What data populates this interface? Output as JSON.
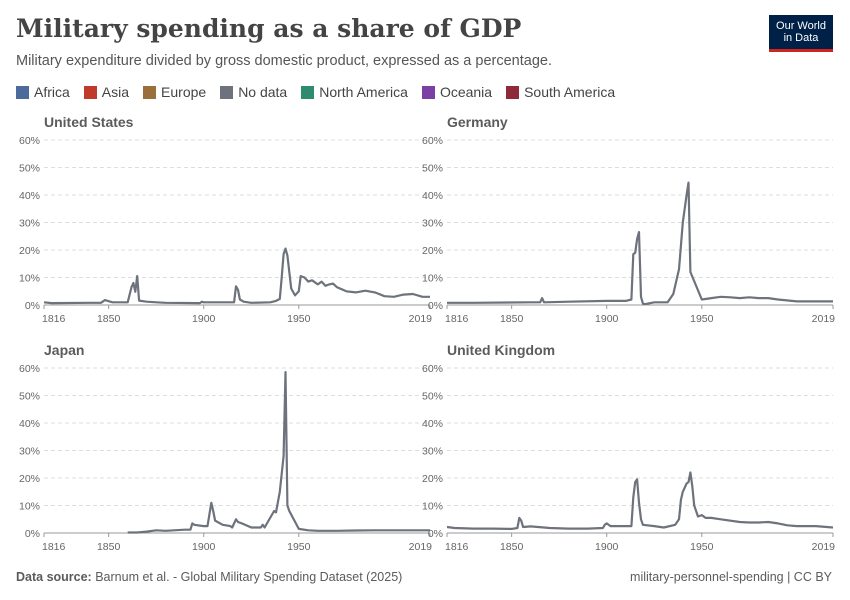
{
  "header": {
    "title": "Military spending as a share of GDP",
    "subtitle": "Military expenditure divided by gross domestic product, expressed as a percentage.",
    "logo_line1": "Our World",
    "logo_line2": "in Data"
  },
  "legend": [
    {
      "label": "Africa",
      "color": "#4c6a9c"
    },
    {
      "label": "Asia",
      "color": "#c0392b"
    },
    {
      "label": "Europe",
      "color": "#9a6f3c"
    },
    {
      "label": "No data",
      "color": "#6d727c"
    },
    {
      "label": "North America",
      "color": "#2e8b6f"
    },
    {
      "label": "Oceania",
      "color": "#7b3fa6"
    },
    {
      "label": "South America",
      "color": "#8f2a3a"
    }
  ],
  "footer": {
    "source_label": "Data source:",
    "source_text": "Barnum et al. - Global Military Spending Dataset (2025)",
    "right_text": "military-personnel-spending | CC BY"
  },
  "chart_data": [
    {
      "type": "line",
      "title": "United States",
      "ylim": [
        0,
        60
      ],
      "xlim": [
        1816,
        2019
      ],
      "yticks": [
        "0%",
        "10%",
        "20%",
        "30%",
        "40%",
        "50%",
        "60%"
      ],
      "xticks": [
        "1816",
        "1850",
        "1900",
        "1950",
        "2019"
      ],
      "series": [
        {
          "color": "#6d727c",
          "points": [
            [
              1816,
              1.0
            ],
            [
              1820,
              0.7
            ],
            [
              1840,
              0.8
            ],
            [
              1846,
              0.8
            ],
            [
              1848,
              1.8
            ],
            [
              1852,
              1.0
            ],
            [
              1860,
              1.0
            ],
            [
              1862,
              6.5
            ],
            [
              1863,
              8.0
            ],
            [
              1864,
              4.8
            ],
            [
              1865,
              10.5
            ],
            [
              1866,
              1.6
            ],
            [
              1870,
              1.2
            ],
            [
              1875,
              1.0
            ],
            [
              1880,
              0.8
            ],
            [
              1898,
              0.7
            ],
            [
              1899,
              1.2
            ],
            [
              1900,
              1.0
            ],
            [
              1916,
              1.0
            ],
            [
              1917,
              6.8
            ],
            [
              1918,
              5.5
            ],
            [
              1919,
              2.0
            ],
            [
              1921,
              1.2
            ],
            [
              1925,
              0.8
            ],
            [
              1935,
              1.0
            ],
            [
              1938,
              1.5
            ],
            [
              1940,
              2.2
            ],
            [
              1941,
              10.0
            ],
            [
              1942,
              18.5
            ],
            [
              1943,
              20.5
            ],
            [
              1944,
              18.0
            ],
            [
              1945,
              12.0
            ],
            [
              1946,
              6.0
            ],
            [
              1948,
              3.5
            ],
            [
              1950,
              5.0
            ],
            [
              1951,
              10.5
            ],
            [
              1953,
              10.0
            ],
            [
              1955,
              8.5
            ],
            [
              1957,
              9.0
            ],
            [
              1960,
              7.5
            ],
            [
              1962,
              8.5
            ],
            [
              1964,
              7.0
            ],
            [
              1966,
              7.5
            ],
            [
              1968,
              7.8
            ],
            [
              1970,
              6.5
            ],
            [
              1975,
              5.0
            ],
            [
              1980,
              4.6
            ],
            [
              1985,
              5.2
            ],
            [
              1990,
              4.6
            ],
            [
              1995,
              3.2
            ],
            [
              2000,
              3.0
            ],
            [
              2005,
              3.8
            ],
            [
              2010,
              4.0
            ],
            [
              2015,
              3.0
            ],
            [
              2019,
              3.0
            ]
          ]
        }
      ]
    },
    {
      "type": "line",
      "title": "Germany",
      "ylim": [
        0,
        60
      ],
      "xlim": [
        1816,
        2019
      ],
      "yticks": [
        "0%",
        "10%",
        "20%",
        "30%",
        "40%",
        "50%",
        "60%"
      ],
      "xticks": [
        "1816",
        "1850",
        "1900",
        "1950",
        "2019"
      ],
      "series": [
        {
          "color": "#6d727c",
          "points": [
            [
              1816,
              0.8
            ],
            [
              1830,
              0.8
            ],
            [
              1860,
              1.0
            ],
            [
              1865,
              1.0
            ],
            [
              1866,
              2.5
            ],
            [
              1867,
              1.0
            ],
            [
              1880,
              1.2
            ],
            [
              1900,
              1.5
            ],
            [
              1910,
              1.5
            ],
            [
              1913,
              2.0
            ],
            [
              1914,
              18.5
            ],
            [
              1915,
              19.0
            ],
            [
              1916,
              24.0
            ],
            [
              1917,
              26.5
            ],
            [
              1918,
              3.0
            ],
            [
              1919,
              0.5
            ],
            [
              1920,
              0.3
            ],
            [
              1925,
              1.0
            ],
            [
              1932,
              1.0
            ],
            [
              1935,
              4.0
            ],
            [
              1938,
              13.0
            ],
            [
              1940,
              30.0
            ],
            [
              1942,
              40.0
            ],
            [
              1943,
              44.5
            ],
            [
              1944,
              12.0
            ],
            [
              1950,
              2.0
            ],
            [
              1955,
              2.5
            ],
            [
              1960,
              3.0
            ],
            [
              1965,
              2.8
            ],
            [
              1970,
              2.5
            ],
            [
              1975,
              2.8
            ],
            [
              1980,
              2.5
            ],
            [
              1985,
              2.5
            ],
            [
              1990,
              2.0
            ],
            [
              2000,
              1.3
            ],
            [
              2010,
              1.3
            ],
            [
              2019,
              1.3
            ]
          ]
        }
      ]
    },
    {
      "type": "line",
      "title": "Japan",
      "ylim": [
        0,
        60
      ],
      "xlim": [
        1816,
        2019
      ],
      "yticks": [
        "0%",
        "10%",
        "20%",
        "30%",
        "40%",
        "50%",
        "60%"
      ],
      "xticks": [
        "1816",
        "1850",
        "1900",
        "1950",
        "2019"
      ],
      "series": [
        {
          "color": "#6d727c",
          "points": [
            [
              1860,
              0.2
            ],
            [
              1865,
              0.2
            ],
            [
              1870,
              0.5
            ],
            [
              1875,
              1.0
            ],
            [
              1880,
              0.8
            ],
            [
              1890,
              1.2
            ],
            [
              1893,
              1.2
            ],
            [
              1894,
              3.5
            ],
            [
              1895,
              3.0
            ],
            [
              1900,
              2.5
            ],
            [
              1902,
              2.5
            ],
            [
              1904,
              11.0
            ],
            [
              1905,
              8.0
            ],
            [
              1906,
              4.5
            ],
            [
              1910,
              3.0
            ],
            [
              1914,
              2.5
            ],
            [
              1915,
              2.0
            ],
            [
              1917,
              5.0
            ],
            [
              1918,
              4.0
            ],
            [
              1920,
              3.5
            ],
            [
              1925,
              2.0
            ],
            [
              1930,
              2.0
            ],
            [
              1931,
              3.0
            ],
            [
              1932,
              2.0
            ],
            [
              1937,
              8.0
            ],
            [
              1938,
              7.5
            ],
            [
              1940,
              15.0
            ],
            [
              1942,
              28.0
            ],
            [
              1943,
              58.5
            ],
            [
              1944,
              10.0
            ],
            [
              1945,
              8.0
            ],
            [
              1950,
              1.5
            ],
            [
              1955,
              1.0
            ],
            [
              1960,
              0.8
            ],
            [
              1970,
              0.8
            ],
            [
              1980,
              0.9
            ],
            [
              1990,
              1.0
            ],
            [
              2000,
              1.0
            ],
            [
              2010,
              1.0
            ],
            [
              2019,
              1.0
            ]
          ]
        }
      ]
    },
    {
      "type": "line",
      "title": "United Kingdom",
      "ylim": [
        0,
        60
      ],
      "xlim": [
        1816,
        2019
      ],
      "yticks": [
        "0%",
        "10%",
        "20%",
        "30%",
        "40%",
        "50%",
        "60%"
      ],
      "xticks": [
        "1816",
        "1850",
        "1900",
        "1950",
        "2019"
      ],
      "series": [
        {
          "color": "#6d727c",
          "points": [
            [
              1816,
              2.2
            ],
            [
              1820,
              1.8
            ],
            [
              1830,
              1.6
            ],
            [
              1840,
              1.6
            ],
            [
              1850,
              1.5
            ],
            [
              1853,
              1.8
            ],
            [
              1854,
              5.5
            ],
            [
              1855,
              4.5
            ],
            [
              1856,
              2.2
            ],
            [
              1860,
              2.4
            ],
            [
              1870,
              1.8
            ],
            [
              1880,
              1.6
            ],
            [
              1890,
              1.6
            ],
            [
              1898,
              1.8
            ],
            [
              1899,
              3.0
            ],
            [
              1900,
              3.5
            ],
            [
              1902,
              2.5
            ],
            [
              1910,
              2.5
            ],
            [
              1913,
              2.5
            ],
            [
              1914,
              13.0
            ],
            [
              1915,
              18.5
            ],
            [
              1916,
              19.5
            ],
            [
              1917,
              11.0
            ],
            [
              1918,
              5.0
            ],
            [
              1919,
              3.0
            ],
            [
              1925,
              2.5
            ],
            [
              1930,
              2.0
            ],
            [
              1936,
              3.0
            ],
            [
              1938,
              5.0
            ],
            [
              1939,
              12.0
            ],
            [
              1940,
              15.0
            ],
            [
              1942,
              18.0
            ],
            [
              1943,
              18.5
            ],
            [
              1944,
              22.0
            ],
            [
              1945,
              17.0
            ],
            [
              1946,
              10.0
            ],
            [
              1948,
              6.0
            ],
            [
              1950,
              6.5
            ],
            [
              1952,
              5.5
            ],
            [
              1955,
              5.5
            ],
            [
              1960,
              5.0
            ],
            [
              1970,
              4.0
            ],
            [
              1975,
              3.8
            ],
            [
              1980,
              3.8
            ],
            [
              1985,
              4.0
            ],
            [
              1990,
              3.5
            ],
            [
              1995,
              2.8
            ],
            [
              2000,
              2.5
            ],
            [
              2010,
              2.5
            ],
            [
              2019,
              2.0
            ]
          ]
        }
      ]
    }
  ]
}
